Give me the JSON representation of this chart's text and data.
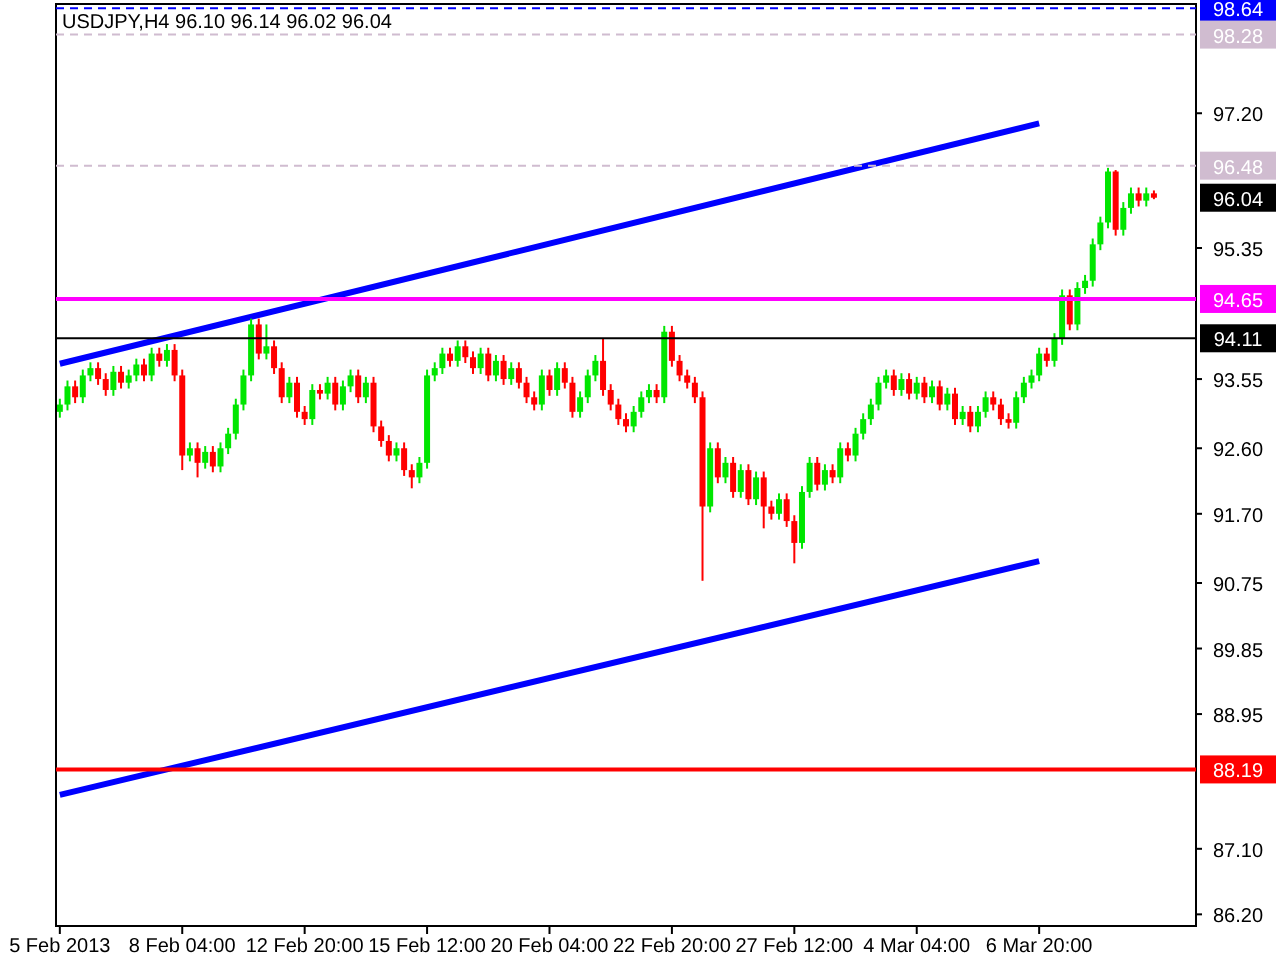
{
  "chart_data": {
    "type": "candlestick",
    "title": "USDJPY,H4  96.10 96.14 96.02 96.04",
    "categories": [
      "5 Feb 2013",
      null,
      null,
      null,
      null,
      null,
      null,
      null,
      null,
      null,
      null,
      null,
      null,
      null,
      null,
      null,
      "8 Feb 04:00",
      null,
      null,
      null,
      null,
      null,
      null,
      null,
      null,
      null,
      null,
      null,
      null,
      null,
      null,
      null,
      "12 Feb 20:00",
      null,
      null,
      null,
      null,
      null,
      null,
      null,
      null,
      null,
      null,
      null,
      null,
      null,
      null,
      null,
      "15 Feb 12:00",
      null,
      null,
      null,
      null,
      null,
      null,
      null,
      null,
      null,
      null,
      null,
      null,
      null,
      null,
      null,
      "20 Feb 04:00",
      null,
      null,
      null,
      null,
      null,
      null,
      null,
      null,
      null,
      null,
      null,
      null,
      null,
      null,
      null,
      "22 Feb 20:00",
      null,
      null,
      null,
      null,
      null,
      null,
      null,
      null,
      null,
      null,
      null,
      null,
      null,
      null,
      null,
      "27 Feb 12:00",
      null,
      null,
      null,
      null,
      null,
      null,
      null,
      null,
      null,
      null,
      null,
      null,
      null,
      null,
      null,
      "4 Mar 04:00",
      null,
      null,
      null,
      null,
      null,
      null,
      null,
      null,
      null,
      null,
      null,
      null,
      null,
      null,
      null,
      "6 Mar 20:00",
      null,
      null,
      null,
      null,
      null,
      null,
      null,
      null,
      null,
      null,
      null,
      null,
      null,
      null,
      null
    ],
    "ohlc": [
      [
        93.1,
        93.28,
        93.02,
        93.2
      ],
      [
        93.2,
        93.53,
        93.12,
        93.45
      ],
      [
        93.45,
        93.53,
        93.22,
        93.3
      ],
      [
        93.3,
        93.68,
        93.22,
        93.6
      ],
      [
        93.6,
        93.78,
        93.52,
        93.7
      ],
      [
        93.7,
        93.78,
        93.47,
        93.55
      ],
      [
        93.55,
        93.63,
        93.32,
        93.4
      ],
      [
        93.4,
        93.73,
        93.32,
        93.65
      ],
      [
        93.65,
        93.73,
        93.42,
        93.5
      ],
      [
        93.5,
        93.68,
        93.42,
        93.6
      ],
      [
        93.6,
        93.83,
        93.52,
        93.75
      ],
      [
        93.75,
        93.83,
        93.52,
        93.6
      ],
      [
        93.6,
        93.98,
        93.52,
        93.9
      ],
      [
        93.9,
        93.98,
        93.72,
        93.8
      ],
      [
        93.8,
        94.03,
        93.72,
        93.95
      ],
      [
        93.95,
        94.03,
        93.52,
        93.6
      ],
      [
        93.6,
        93.68,
        92.3,
        92.5
      ],
      [
        92.5,
        92.68,
        92.42,
        92.6
      ],
      [
        92.6,
        92.68,
        92.2,
        92.4
      ],
      [
        92.4,
        92.63,
        92.32,
        92.55
      ],
      [
        92.55,
        92.63,
        92.27,
        92.35
      ],
      [
        92.35,
        92.68,
        92.27,
        92.6
      ],
      [
        92.6,
        92.88,
        92.52,
        92.8
      ],
      [
        92.8,
        93.28,
        92.72,
        93.2
      ],
      [
        93.2,
        93.68,
        93.12,
        93.6
      ],
      [
        93.6,
        94.38,
        93.52,
        94.3
      ],
      [
        94.3,
        94.38,
        93.82,
        93.9
      ],
      [
        93.9,
        94.3,
        93.82,
        94.0
      ],
      [
        94.0,
        94.08,
        93.62,
        93.7
      ],
      [
        93.7,
        93.78,
        93.22,
        93.3
      ],
      [
        93.3,
        93.58,
        93.22,
        93.5
      ],
      [
        93.5,
        93.58,
        93.02,
        93.1
      ],
      [
        93.1,
        93.18,
        92.92,
        93.0
      ],
      [
        93.0,
        93.48,
        92.92,
        93.4
      ],
      [
        93.4,
        93.48,
        93.27,
        93.35
      ],
      [
        93.35,
        93.58,
        93.27,
        93.5
      ],
      [
        93.5,
        93.58,
        93.12,
        93.2
      ],
      [
        93.2,
        93.53,
        93.12,
        93.45
      ],
      [
        93.45,
        93.68,
        93.37,
        93.6
      ],
      [
        93.6,
        93.68,
        93.22,
        93.3
      ],
      [
        93.3,
        93.58,
        93.22,
        93.5
      ],
      [
        93.5,
        93.58,
        92.82,
        92.9
      ],
      [
        92.9,
        92.98,
        92.62,
        92.7
      ],
      [
        92.7,
        92.78,
        92.42,
        92.5
      ],
      [
        92.5,
        92.68,
        92.42,
        92.6
      ],
      [
        92.6,
        92.68,
        92.22,
        92.3
      ],
      [
        92.3,
        92.38,
        92.05,
        92.2
      ],
      [
        92.2,
        92.48,
        92.12,
        92.4
      ],
      [
        92.4,
        93.68,
        92.32,
        93.6
      ],
      [
        93.6,
        93.78,
        93.52,
        93.7
      ],
      [
        93.7,
        93.98,
        93.62,
        93.9
      ],
      [
        93.9,
        93.98,
        93.72,
        93.8
      ],
      [
        93.8,
        94.08,
        93.72,
        94.0
      ],
      [
        94.0,
        94.08,
        93.77,
        93.85
      ],
      [
        93.85,
        93.93,
        93.62,
        93.7
      ],
      [
        93.7,
        93.98,
        93.62,
        93.9
      ],
      [
        93.9,
        93.98,
        93.52,
        93.6
      ],
      [
        93.6,
        93.88,
        93.52,
        93.8
      ],
      [
        93.8,
        93.88,
        93.47,
        93.55
      ],
      [
        93.55,
        93.78,
        93.47,
        93.7
      ],
      [
        93.7,
        93.78,
        93.42,
        93.5
      ],
      [
        93.5,
        93.58,
        93.22,
        93.3
      ],
      [
        93.3,
        93.38,
        93.12,
        93.2
      ],
      [
        93.2,
        93.68,
        93.12,
        93.6
      ],
      [
        93.6,
        93.68,
        93.32,
        93.4
      ],
      [
        93.4,
        93.78,
        93.32,
        93.7
      ],
      [
        93.7,
        93.78,
        93.42,
        93.5
      ],
      [
        93.5,
        93.58,
        93.02,
        93.1
      ],
      [
        93.1,
        93.38,
        93.02,
        93.3
      ],
      [
        93.3,
        93.68,
        93.22,
        93.6
      ],
      [
        93.6,
        93.88,
        93.52,
        93.8
      ],
      [
        93.8,
        94.1,
        93.32,
        93.4
      ],
      [
        93.4,
        93.48,
        93.12,
        93.2
      ],
      [
        93.2,
        93.28,
        92.92,
        93.0
      ],
      [
        93.0,
        93.08,
        92.82,
        92.9
      ],
      [
        92.9,
        93.18,
        92.82,
        93.1
      ],
      [
        93.1,
        93.38,
        93.02,
        93.3
      ],
      [
        93.3,
        93.48,
        93.22,
        93.4
      ],
      [
        93.4,
        93.48,
        93.22,
        93.3
      ],
      [
        93.3,
        94.28,
        93.22,
        94.2
      ],
      [
        94.2,
        94.28,
        93.72,
        93.8
      ],
      [
        93.8,
        93.88,
        93.52,
        93.6
      ],
      [
        93.6,
        93.68,
        93.42,
        93.5
      ],
      [
        93.5,
        93.58,
        93.22,
        93.3
      ],
      [
        93.3,
        93.38,
        90.78,
        91.8
      ],
      [
        91.8,
        92.68,
        91.72,
        92.6
      ],
      [
        92.6,
        92.68,
        92.12,
        92.2
      ],
      [
        92.2,
        92.48,
        92.12,
        92.4
      ],
      [
        92.4,
        92.48,
        91.92,
        92.0
      ],
      [
        92.0,
        92.38,
        91.92,
        92.3
      ],
      [
        92.3,
        92.38,
        91.82,
        91.9
      ],
      [
        91.9,
        92.28,
        91.82,
        92.2
      ],
      [
        92.2,
        92.28,
        91.5,
        91.8
      ],
      [
        91.8,
        91.88,
        91.62,
        91.7
      ],
      [
        91.7,
        91.98,
        91.62,
        91.9
      ],
      [
        91.9,
        91.98,
        91.52,
        91.6
      ],
      [
        91.6,
        91.68,
        91.02,
        91.3
      ],
      [
        91.3,
        92.08,
        91.22,
        92.0
      ],
      [
        92.0,
        92.48,
        91.92,
        92.4
      ],
      [
        92.4,
        92.48,
        92.02,
        92.1
      ],
      [
        92.1,
        92.38,
        92.02,
        92.3
      ],
      [
        92.3,
        92.38,
        92.12,
        92.2
      ],
      [
        92.2,
        92.68,
        92.12,
        92.6
      ],
      [
        92.6,
        92.68,
        92.42,
        92.5
      ],
      [
        92.5,
        92.88,
        92.42,
        92.8
      ],
      [
        92.8,
        93.08,
        92.72,
        93.0
      ],
      [
        93.0,
        93.28,
        92.92,
        93.2
      ],
      [
        93.2,
        93.58,
        93.12,
        93.5
      ],
      [
        93.5,
        93.68,
        93.42,
        93.6
      ],
      [
        93.6,
        93.68,
        93.32,
        93.4
      ],
      [
        93.4,
        93.63,
        93.32,
        93.55
      ],
      [
        93.55,
        93.63,
        93.27,
        93.35
      ],
      [
        93.35,
        93.58,
        93.27,
        93.5
      ],
      [
        93.5,
        93.58,
        93.22,
        93.3
      ],
      [
        93.3,
        93.53,
        93.22,
        93.45
      ],
      [
        93.45,
        93.53,
        93.12,
        93.2
      ],
      [
        93.2,
        93.43,
        93.12,
        93.35
      ],
      [
        93.35,
        93.43,
        92.92,
        93.0
      ],
      [
        93.0,
        93.18,
        92.92,
        93.1
      ],
      [
        93.1,
        93.18,
        92.82,
        92.9
      ],
      [
        92.9,
        93.18,
        92.82,
        93.1
      ],
      [
        93.1,
        93.38,
        93.02,
        93.3
      ],
      [
        93.3,
        93.38,
        93.12,
        93.2
      ],
      [
        93.2,
        93.28,
        92.92,
        93.0
      ],
      [
        93.0,
        93.08,
        92.87,
        92.95
      ],
      [
        92.95,
        93.38,
        92.87,
        93.3
      ],
      [
        93.3,
        93.58,
        93.22,
        93.5
      ],
      [
        93.5,
        93.68,
        93.42,
        93.6
      ],
      [
        93.6,
        93.98,
        93.52,
        93.9
      ],
      [
        93.9,
        93.98,
        93.72,
        93.8
      ],
      [
        93.8,
        94.18,
        93.72,
        94.1
      ],
      [
        94.1,
        94.78,
        94.02,
        94.7
      ],
      [
        94.7,
        94.78,
        94.22,
        94.3
      ],
      [
        94.3,
        94.88,
        94.22,
        94.8
      ],
      [
        94.8,
        94.98,
        94.72,
        94.9
      ],
      [
        94.9,
        95.48,
        94.82,
        95.4
      ],
      [
        95.4,
        95.78,
        95.32,
        95.7
      ],
      [
        95.7,
        96.45,
        95.62,
        96.4
      ],
      [
        96.4,
        96.42,
        95.52,
        95.6
      ],
      [
        95.6,
        95.98,
        95.52,
        95.9
      ],
      [
        95.9,
        96.18,
        95.82,
        96.1
      ],
      [
        96.1,
        96.18,
        95.92,
        96.0
      ],
      [
        96.0,
        96.18,
        95.92,
        96.1
      ],
      [
        96.1,
        96.14,
        96.02,
        96.04
      ]
    ],
    "series": [
      {
        "type": "line",
        "color": "#0000ff",
        "x": [
          "5 Feb 2013",
          "6 Mar 20:00"
        ],
        "values": [
          93.76,
          97.06
        ]
      },
      {
        "type": "line",
        "color": "#0000ff",
        "x": [
          "5 Feb 2013",
          "6 Mar 20:00"
        ],
        "values": [
          87.84,
          91.05
        ]
      }
    ],
    "ylim": [
      86.04,
      98.7
    ],
    "yticks": [
      {
        "value": 97.2,
        "label": "97.20"
      },
      95.35,
      93.55,
      {
        "value": 92.6,
        "label": "92.60"
      },
      {
        "value": 91.7,
        "label": "91.70"
      },
      90.75,
      89.85,
      88.95,
      {
        "value": 87.1,
        "label": "87.10"
      },
      {
        "value": 86.2,
        "label": "86.20"
      }
    ],
    "annotations": [
      "96.04"
    ],
    "ref_lines": [
      {
        "axis": "y",
        "value": 98.64,
        "label": "98.64",
        "color": "#0000ff",
        "line_style": "dashed"
      },
      {
        "axis": "y",
        "value": 98.28,
        "label": "98.28",
        "color": "#d0bcd0",
        "line_style": "dashed"
      },
      {
        "axis": "y",
        "value": 96.48,
        "label": "96.48",
        "color": "#d0bcd0",
        "line_style": "dashed"
      },
      {
        "axis": "y",
        "value": 94.65,
        "label": "94.65",
        "color": "#ff00ff",
        "line_style": "solid"
      },
      {
        "axis": "y",
        "value": 94.11,
        "label": "94.11",
        "color": "#000000",
        "line_style": "solid"
      },
      {
        "axis": "y",
        "value": 88.19,
        "label": "88.19",
        "color": "#ff0000",
        "line_style": "solid"
      }
    ],
    "grid": false
  }
}
